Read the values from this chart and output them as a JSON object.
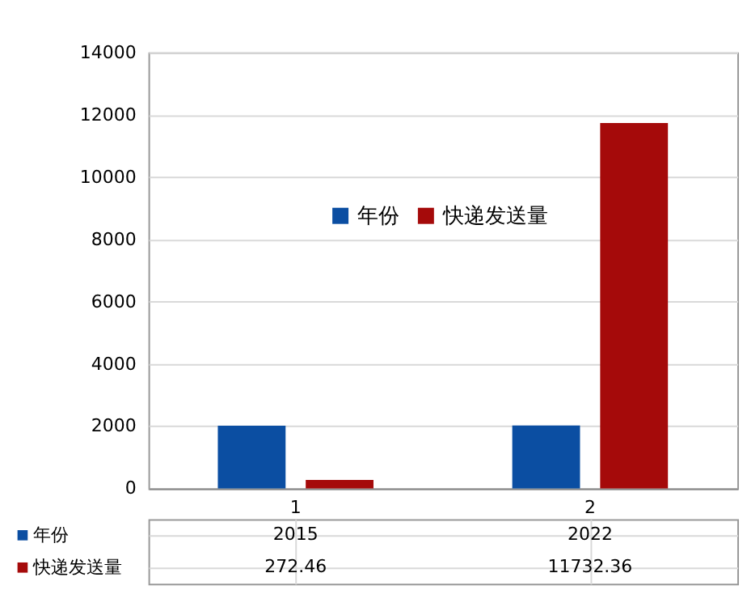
{
  "chart_data": {
    "type": "bar",
    "categories": [
      "1",
      "2"
    ],
    "series": [
      {
        "name": "年份",
        "color": "#0b4ea2",
        "values": [
          2015,
          2022
        ]
      },
      {
        "name": "快递发送量",
        "color": "#a50a0a",
        "values": [
          272.46,
          11732.36
        ]
      }
    ],
    "ylim": [
      0,
      14000
    ],
    "yticks": [
      0,
      2000,
      4000,
      6000,
      8000,
      10000,
      12000,
      14000
    ],
    "grid": "y",
    "legend": "bottom left",
    "data_labels": true
  }
}
